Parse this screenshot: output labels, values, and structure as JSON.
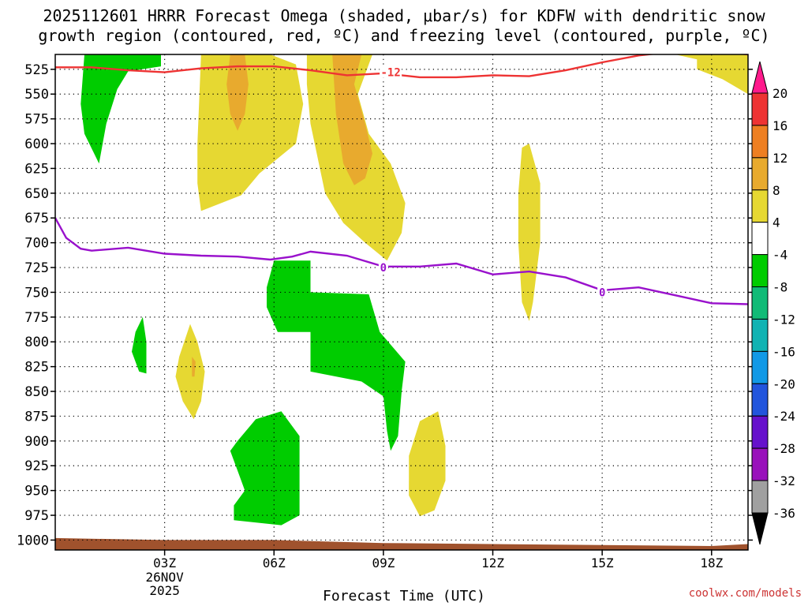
{
  "title_line1": "2025112601 HRRR Forecast Omega (shaded, μbar/s) for KDFW with dendritic snow",
  "title_line2": "growth region (contoured, red, ºC) and freezing level (contoured, purple, ºC)",
  "credit": "coolwx.com/models",
  "chart_data": {
    "type": "time-height-contour",
    "xlabel": "Forecast Time (UTC)",
    "ylabel": "",
    "x_range_hours": [
      0,
      19
    ],
    "y_range_mb": [
      510,
      1010
    ],
    "y_axis_inverted": true,
    "grid": "dotted",
    "y_ticks": [
      525,
      550,
      575,
      600,
      625,
      650,
      675,
      700,
      725,
      750,
      775,
      800,
      825,
      850,
      875,
      900,
      925,
      950,
      975,
      1000
    ],
    "x_ticks": [
      {
        "hour": 3,
        "label": "03Z",
        "sub1": "26NOV",
        "sub2": "2025"
      },
      {
        "hour": 6,
        "label": "06Z",
        "sub1": "",
        "sub2": ""
      },
      {
        "hour": 9,
        "label": "09Z",
        "sub1": "",
        "sub2": ""
      },
      {
        "hour": 12,
        "label": "12Z",
        "sub1": "",
        "sub2": ""
      },
      {
        "hour": 15,
        "label": "15Z",
        "sub1": "",
        "sub2": ""
      },
      {
        "hour": 18,
        "label": "18Z",
        "sub1": "",
        "sub2": ""
      }
    ],
    "colorbar": {
      "labels": [
        20,
        16,
        12,
        8,
        4,
        -4,
        -8,
        -12,
        -16,
        -20,
        -24,
        -28,
        -32,
        -36
      ],
      "colors": [
        "#ff1a8c",
        "#ee3333",
        "#ee7f22",
        "#e8aa2e",
        "#e6d832",
        "#ffffff",
        "#00cc00",
        "#11bb77",
        "#11b3b3",
        "#1199e6",
        "#2255dd",
        "#6611cc",
        "#9911bb",
        "#a0a0a0",
        "#000000"
      ]
    },
    "omega_regions": [
      {
        "color": "#00cc00",
        "points": [
          [
            0.8,
            510
          ],
          [
            2.9,
            510
          ],
          [
            2.9,
            522
          ],
          [
            2,
            527
          ],
          [
            1.7,
            545
          ],
          [
            1.4,
            580
          ],
          [
            1.2,
            620
          ],
          [
            0.8,
            590
          ],
          [
            0.7,
            560
          ]
        ]
      },
      {
        "color": "#e6d832",
        "points": [
          [
            4,
            510
          ],
          [
            5.9,
            510
          ],
          [
            6.6,
            520
          ],
          [
            6.8,
            560
          ],
          [
            6.6,
            600
          ],
          [
            5.6,
            630
          ],
          [
            5.1,
            652
          ],
          [
            4,
            668
          ],
          [
            3.9,
            640
          ],
          [
            3.9,
            600
          ]
        ]
      },
      {
        "color": "#e8aa2e",
        "points": [
          [
            4.8,
            510
          ],
          [
            5.2,
            510
          ],
          [
            5.3,
            540
          ],
          [
            5.2,
            570
          ],
          [
            5,
            587
          ],
          [
            4.8,
            570
          ],
          [
            4.7,
            540
          ]
        ]
      },
      {
        "color": "#e6d832",
        "points": [
          [
            6.9,
            510
          ],
          [
            8.7,
            510
          ],
          [
            8.3,
            550
          ],
          [
            8.6,
            590
          ],
          [
            9.2,
            620
          ],
          [
            9.6,
            660
          ],
          [
            9.5,
            690
          ],
          [
            9.1,
            718
          ],
          [
            8.5,
            700
          ],
          [
            7.9,
            680
          ],
          [
            7.4,
            650
          ],
          [
            7.0,
            580
          ],
          [
            6.9,
            540
          ]
        ]
      },
      {
        "color": "#e8aa2e",
        "points": [
          [
            7.6,
            510
          ],
          [
            8.4,
            510
          ],
          [
            8.2,
            540
          ],
          [
            8.5,
            580
          ],
          [
            8.7,
            610
          ],
          [
            8.5,
            635
          ],
          [
            8.2,
            642
          ],
          [
            7.9,
            620
          ],
          [
            7.7,
            570
          ]
        ]
      },
      {
        "color": "#e6d832",
        "points": [
          [
            17,
            510
          ],
          [
            19,
            510
          ],
          [
            19,
            550
          ],
          [
            18.3,
            535
          ],
          [
            17.6,
            525
          ],
          [
            17.6,
            515
          ]
        ]
      },
      {
        "color": "#e6d832",
        "points": [
          [
            12.8,
            604
          ],
          [
            13.0,
            600
          ],
          [
            13.3,
            640
          ],
          [
            13.3,
            700
          ],
          [
            13.1,
            760
          ],
          [
            13.0,
            779
          ],
          [
            12.8,
            760
          ],
          [
            12.7,
            700
          ],
          [
            12.7,
            650
          ]
        ]
      },
      {
        "color": "#00cc00",
        "points": [
          [
            6,
            718
          ],
          [
            7,
            718
          ],
          [
            7,
            750
          ],
          [
            8.6,
            752
          ],
          [
            8.9,
            790
          ],
          [
            9.6,
            820
          ],
          [
            9.5,
            850
          ],
          [
            9.4,
            895
          ],
          [
            9.2,
            910
          ],
          [
            9.1,
            890
          ],
          [
            9.0,
            855
          ],
          [
            8.4,
            840
          ],
          [
            7.0,
            830
          ],
          [
            7.0,
            790
          ],
          [
            6.1,
            790
          ],
          [
            5.8,
            765
          ],
          [
            5.8,
            745
          ]
        ]
      },
      {
        "color": "#00cc00",
        "points": [
          [
            2.2,
            790
          ],
          [
            2.4,
            775
          ],
          [
            2.5,
            800
          ],
          [
            2.5,
            832
          ],
          [
            2.3,
            830
          ],
          [
            2.1,
            810
          ]
        ]
      },
      {
        "color": "#e6d832",
        "points": [
          [
            3.4,
            815
          ],
          [
            3.7,
            782
          ],
          [
            3.9,
            800
          ],
          [
            4.1,
            830
          ],
          [
            4.0,
            860
          ],
          [
            3.8,
            878
          ],
          [
            3.5,
            860
          ],
          [
            3.3,
            835
          ]
        ]
      },
      {
        "color": "#e8aa2e",
        "points": [
          [
            3.75,
            815
          ],
          [
            3.85,
            820
          ],
          [
            3.82,
            835
          ],
          [
            3.75,
            835
          ]
        ]
      },
      {
        "color": "#00cc00",
        "points": [
          [
            5.0,
            900
          ],
          [
            5.5,
            878
          ],
          [
            6.2,
            870
          ],
          [
            6.7,
            895
          ],
          [
            6.7,
            975
          ],
          [
            6.2,
            985
          ],
          [
            4.9,
            980
          ],
          [
            4.9,
            965
          ],
          [
            5.2,
            950
          ],
          [
            5.0,
            930
          ],
          [
            4.8,
            910
          ]
        ]
      },
      {
        "color": "#e6d832",
        "points": [
          [
            10.0,
            880
          ],
          [
            10.5,
            870
          ],
          [
            10.7,
            905
          ],
          [
            10.7,
            940
          ],
          [
            10.4,
            970
          ],
          [
            10.0,
            976
          ],
          [
            9.7,
            955
          ],
          [
            9.7,
            915
          ]
        ]
      }
    ],
    "dgz_line": {
      "color": "#ee3333",
      "label": "-12",
      "label_at": [
        9.2,
        528
      ],
      "points": [
        [
          0,
          523
        ],
        [
          1,
          523
        ],
        [
          2,
          526
        ],
        [
          3,
          528
        ],
        [
          4,
          524
        ],
        [
          5,
          522
        ],
        [
          6,
          522
        ],
        [
          7,
          526
        ],
        [
          8,
          531
        ],
        [
          9,
          529
        ],
        [
          10,
          533
        ],
        [
          11,
          533
        ],
        [
          12,
          531
        ],
        [
          13,
          532
        ],
        [
          14,
          526
        ],
        [
          15,
          518
        ],
        [
          16,
          511
        ],
        [
          17,
          507
        ],
        [
          18,
          506
        ],
        [
          19,
          510
        ]
      ]
    },
    "freezing_line": {
      "color": "#9911cc",
      "labels": [
        {
          "text": "0",
          "at": [
            9.0,
            725
          ]
        },
        {
          "text": "0",
          "at": [
            15.0,
            750
          ]
        }
      ],
      "points": [
        [
          0,
          675
        ],
        [
          0.3,
          695
        ],
        [
          0.7,
          706
        ],
        [
          1,
          708
        ],
        [
          2,
          705
        ],
        [
          3,
          711
        ],
        [
          4,
          713
        ],
        [
          5,
          714
        ],
        [
          5.9,
          717
        ],
        [
          6.5,
          714
        ],
        [
          7,
          709
        ],
        [
          8,
          713
        ],
        [
          9,
          724
        ],
        [
          10,
          724
        ],
        [
          11,
          721
        ],
        [
          12,
          732
        ],
        [
          13,
          729
        ],
        [
          14,
          735
        ],
        [
          15,
          748
        ],
        [
          16,
          745
        ],
        [
          17,
          753
        ],
        [
          18,
          761
        ],
        [
          19,
          762
        ]
      ]
    },
    "terrain": {
      "color": "#a0522d",
      "top_points": [
        [
          0,
          998
        ],
        [
          3,
          1000
        ],
        [
          6,
          1000
        ],
        [
          9,
          1003
        ],
        [
          12,
          1004
        ],
        [
          15,
          1005
        ],
        [
          18,
          1006
        ],
        [
          19,
          1004
        ]
      ]
    }
  }
}
